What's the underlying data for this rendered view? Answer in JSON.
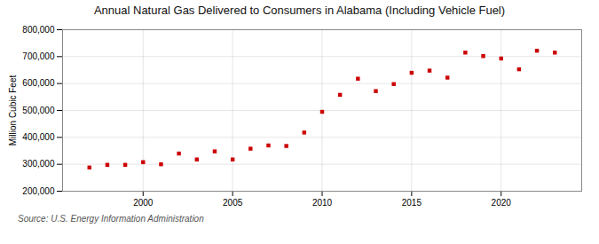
{
  "chart_data": {
    "type": "scatter",
    "title": "Annual Natural Gas Delivered to Consumers in Alabama (Including Vehicle Fuel)",
    "y_label": "Million Cubic Feet",
    "annotations": [
      "Source: U.S. Energy Information Administration"
    ],
    "x": [
      1997,
      1998,
      1999,
      2000,
      2001,
      2002,
      2003,
      2004,
      2005,
      2006,
      2007,
      2008,
      2009,
      2010,
      2011,
      2012,
      2013,
      2014,
      2015,
      2016,
      2017,
      2018,
      2019,
      2020,
      2021,
      2022,
      2023
    ],
    "values": [
      288000,
      298000,
      298000,
      308000,
      300000,
      340000,
      318000,
      348000,
      318000,
      358000,
      370000,
      368000,
      418000,
      495000,
      558000,
      618000,
      572000,
      598000,
      640000,
      648000,
      622000,
      715000,
      702000,
      693000,
      653000,
      722000,
      715000
    ],
    "color": "#cc0000",
    "marker": "square",
    "xlim": [
      1995.5,
      2024.5
    ],
    "xticks": [
      2000,
      2005,
      2010,
      2015,
      2020
    ],
    "ylim": [
      200000,
      800000
    ],
    "yticks": [
      {
        "value": 200000,
        "label": "200,000"
      },
      {
        "value": 300000,
        "label": "300,000"
      },
      {
        "value": 400000,
        "label": "400,000"
      },
      {
        "value": 500000,
        "label": "500,000"
      },
      {
        "value": 600000,
        "label": "600,000"
      },
      {
        "value": 700000,
        "label": "700,000"
      },
      {
        "value": 800000,
        "label": "800,000"
      }
    ],
    "grid": true
  }
}
